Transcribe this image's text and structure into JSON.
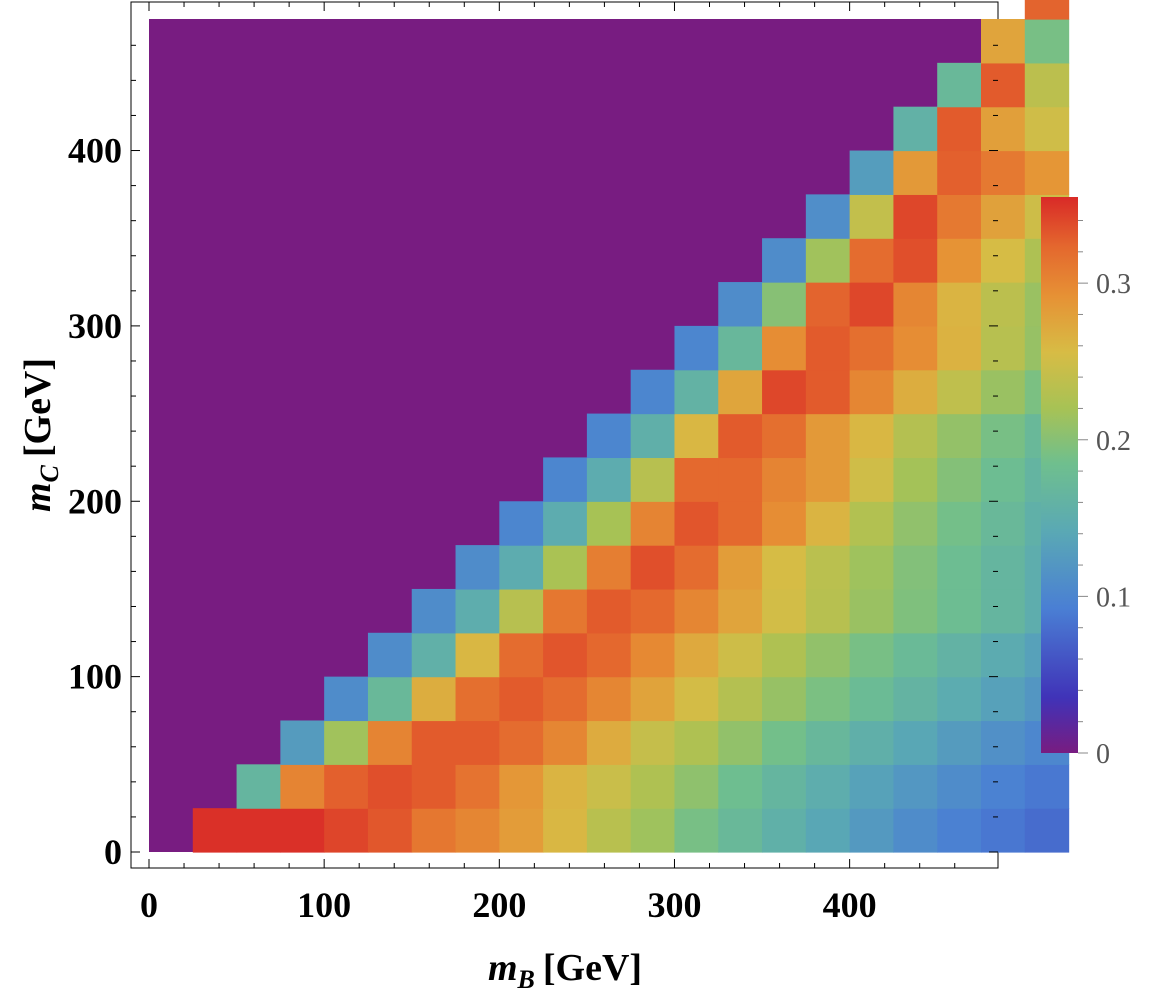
{
  "chart_data": {
    "type": "heatmap",
    "title": "",
    "xlabel": {
      "main": "m",
      "sub": "B",
      "unit": "[GeV]"
    },
    "ylabel": {
      "main": "m",
      "sub": "C",
      "unit": "[GeV]"
    },
    "xlim": [
      0,
      475
    ],
    "ylim": [
      0,
      475
    ],
    "bin_size": 25,
    "xticks": [
      "0",
      "100",
      "200",
      "300",
      "400"
    ],
    "yticks": [
      "0",
      "100",
      "200",
      "300",
      "400"
    ],
    "colorbar": {
      "range": [
        0,
        0.355
      ],
      "ticks": [
        "0",
        "0.1",
        "0.2",
        "0.3"
      ],
      "tick_values": [
        0,
        0.1,
        0.2,
        0.3
      ]
    },
    "background_color": "#781c81",
    "values": [
      [
        0.352,
        0.352,
        0.352,
        0.341,
        0.332,
        0.312,
        0.3,
        0.283,
        0.26,
        0.233,
        0.215,
        0.19,
        0.172,
        0.155,
        0.14,
        0.123,
        0.108,
        0.095,
        0.086,
        0.078
      ],
      [
        0.165,
        0.302,
        0.327,
        0.336,
        0.33,
        0.315,
        0.287,
        0.262,
        0.245,
        0.226,
        0.205,
        0.182,
        0.165,
        0.15,
        0.134,
        0.121,
        0.108,
        0.096,
        0.087
      ],
      [
        0.126,
        0.216,
        0.302,
        0.33,
        0.33,
        0.32,
        0.3,
        0.27,
        0.242,
        0.226,
        0.207,
        0.187,
        0.17,
        0.154,
        0.14,
        0.126,
        0.113,
        0.102
      ],
      [
        0.108,
        0.172,
        0.268,
        0.318,
        0.33,
        0.32,
        0.3,
        0.277,
        0.253,
        0.23,
        0.21,
        0.192,
        0.177,
        0.162,
        0.147,
        0.133,
        0.12
      ],
      [
        0.108,
        0.156,
        0.26,
        0.32,
        0.333,
        0.323,
        0.298,
        0.272,
        0.248,
        0.226,
        0.207,
        0.19,
        0.175,
        0.16,
        0.146,
        0.132
      ],
      [
        0.108,
        0.15,
        0.232,
        0.312,
        0.33,
        0.322,
        0.3,
        0.276,
        0.252,
        0.232,
        0.212,
        0.195,
        0.18,
        0.165,
        0.15
      ],
      [
        0.108,
        0.148,
        0.222,
        0.306,
        0.336,
        0.32,
        0.282,
        0.255,
        0.234,
        0.215,
        0.197,
        0.18,
        0.165,
        0.15
      ],
      [
        0.1,
        0.148,
        0.22,
        0.302,
        0.333,
        0.322,
        0.295,
        0.262,
        0.228,
        0.206,
        0.188,
        0.172,
        0.155
      ],
      [
        0.1,
        0.148,
        0.232,
        0.322,
        0.322,
        0.302,
        0.285,
        0.25,
        0.218,
        0.198,
        0.18,
        0.163
      ],
      [
        0.1,
        0.154,
        0.26,
        0.33,
        0.318,
        0.285,
        0.26,
        0.23,
        0.208,
        0.19,
        0.172
      ],
      [
        0.1,
        0.16,
        0.275,
        0.34,
        0.33,
        0.3,
        0.268,
        0.238,
        0.212,
        0.192
      ],
      [
        0.1,
        0.17,
        0.295,
        0.33,
        0.318,
        0.295,
        0.264,
        0.232,
        0.21
      ],
      [
        0.108,
        0.2,
        0.325,
        0.34,
        0.3,
        0.262,
        0.235,
        0.212
      ],
      [
        0.108,
        0.216,
        0.32,
        0.336,
        0.29,
        0.255,
        0.225
      ],
      [
        0.11,
        0.24,
        0.34,
        0.31,
        0.278,
        0.248
      ],
      [
        0.128,
        0.285,
        0.327,
        0.31,
        0.288
      ],
      [
        0.158,
        0.33,
        0.28,
        0.25
      ],
      [
        0.172,
        0.33,
        0.235
      ],
      [
        0.276,
        0.19
      ],
      [
        0.325
      ]
    ]
  }
}
